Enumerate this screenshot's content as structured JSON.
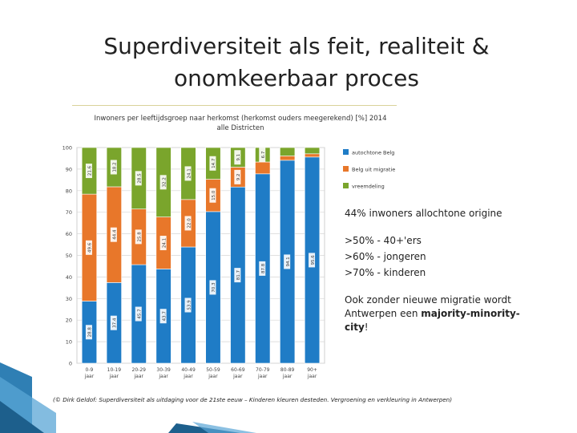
{
  "slide": {
    "title_line1": "Superdiversiteit als feit, realiteit &",
    "title_line2": "onomkeerbaar proces"
  },
  "chart_data": {
    "type": "bar",
    "stacked": true,
    "title": "Inwoners per leeftijdsgroep naar herkomst (herkomst ouders meegerekend) [%] 2014",
    "subtitle": "alle Districten",
    "categories": [
      "0-9 jaar",
      "10-19 jaar",
      "20-29 jaar",
      "30-39 jaar",
      "40-49 jaar",
      "50-59 jaar",
      "60-69 jaar",
      "70-79 jaar",
      "80-89 jaar",
      "90+ jaar"
    ],
    "series": [
      {
        "name": "autochtone Belg",
        "color": "#1f7cc6",
        "values": [
          28.8,
          37.4,
          45.7,
          43.7,
          53.9,
          70.3,
          81.7,
          87.8,
          94.1,
          95.6
        ]
      },
      {
        "name": "Belg uit migratie",
        "color": "#e8772a",
        "values": [
          49.6,
          44.4,
          25.8,
          24.1,
          22.0,
          15.0,
          9.2,
          5.5,
          2.0,
          1.5
        ]
      },
      {
        "name": "vreemdeling",
        "color": "#7aa52c",
        "values": [
          21.6,
          18.2,
          28.5,
          32.2,
          24.1,
          14.7,
          9.1,
          6.7,
          3.9,
          2.9
        ]
      }
    ],
    "ylim": [
      0,
      100
    ],
    "yticks": [
      0,
      10,
      20,
      30,
      40,
      50,
      60,
      70,
      80,
      90,
      100
    ],
    "grid": true,
    "legend": "right"
  },
  "side_text": {
    "line1": "44%  inwoners allochtone origine",
    "line2": ">50% - 40+'ers",
    "line3": ">60% - jongeren",
    "line4": ">70% - kinderen",
    "line5a": "Ook zonder nieuwe migratie wordt",
    "line5b": "Antwerpen een ",
    "line5bold1": "majority-minority-",
    "line5bold2": "city",
    "line5end": "!"
  },
  "source": "(© Dirk Geldof: Superdiversiteit als uitdaging voor de 21ste eeuw – Kinderen kleuren desteden. Vergroening en verkleuring in Antwerpen)"
}
